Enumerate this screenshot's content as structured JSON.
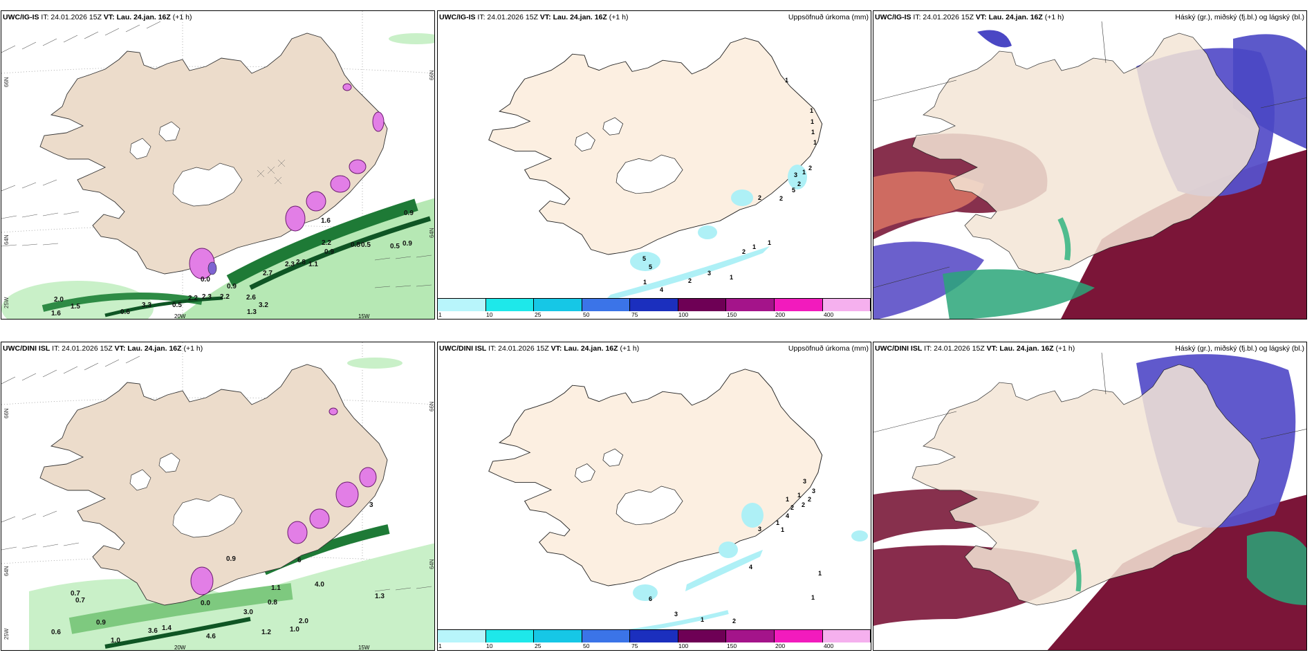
{
  "rows": [
    {
      "model": "UWC/IG-IS",
      "panels": [
        {
          "it": "IT: 24.01.2026 15Z",
          "vt": "VT: Lau. 24.jan. 16Z",
          "lead": "(+1 h)",
          "title_right": "",
          "lat_labels": [
            "66N",
            "64N",
            "25W"
          ],
          "lon_labels": [
            "20W",
            "15W"
          ],
          "right_lat": [
            "66N",
            "64N"
          ],
          "values": [
            {
              "text": "0.9"
            },
            {
              "text": "0.5"
            },
            {
              "text": "0.9"
            },
            {
              "text": "0.8"
            },
            {
              "text": "0.5"
            },
            {
              "text": "0.9"
            },
            {
              "text": "2.2"
            },
            {
              "text": "2.7"
            },
            {
              "text": "2.3"
            },
            {
              "text": "1.1"
            },
            {
              "text": "2.8"
            },
            {
              "text": "2.2"
            },
            {
              "text": "2.6"
            },
            {
              "text": "1.3"
            },
            {
              "text": "3.2"
            },
            {
              "text": "2.3"
            },
            {
              "text": "2.2"
            },
            {
              "text": "1.5"
            },
            {
              "text": "0.6"
            },
            {
              "text": "0.5"
            },
            {
              "text": "3.3"
            },
            {
              "text": "0.9"
            },
            {
              "text": "1.6"
            },
            {
              "text": "2.0"
            },
            {
              "text": "0.0"
            },
            {
              "text": "1.6"
            }
          ]
        },
        {
          "it": "IT: 24.01.2026 15Z",
          "vt": "VT: Lau. 24.jan. 16Z",
          "lead": "(+1 h)",
          "title_right": "Uppsöfnuð úrkoma (mm)",
          "point_labels": [
            "1",
            "1",
            "1",
            "1",
            "1",
            "1",
            "2",
            "3",
            "2",
            "5",
            "2",
            "2",
            "1",
            "2",
            "1",
            "1",
            "3",
            "2",
            "4",
            "1",
            "5",
            "5"
          ],
          "legend": {
            "ticks": [
              "1",
              "10",
              "25",
              "50",
              "75",
              "100",
              "150",
              "200",
              "400"
            ],
            "colors": [
              "#b8f5fb",
              "#1ee8ea",
              "#16c7e6",
              "#3b74e8",
              "#1b2fbe",
              "#6e0055",
              "#a4148a",
              "#f21bbd",
              "#f5b0ee"
            ]
          }
        },
        {
          "it": "IT: 24.01.2026 15Z",
          "vt": "VT: Lau. 24.jan. 16Z",
          "lead": "(+1 h)",
          "title_right": "Háský (gr.), miðský (fj.bl.) og lágský (bl.)"
        }
      ]
    },
    {
      "model": "UWC/DINI ISL",
      "panels": [
        {
          "it": "IT: 24.01.2026 15Z",
          "vt": "VT: Lau. 24.jan. 16Z",
          "lead": "(+1 h)",
          "title_right": "",
          "lat_labels": [
            "66N",
            "64N",
            "25W"
          ],
          "lon_labels": [
            "20W",
            "15W"
          ],
          "right_lat": [
            "66N",
            "64N"
          ],
          "values": [
            {
              "text": "0.7"
            },
            {
              "text": "0.7"
            },
            {
              "text": "0.9"
            },
            {
              "text": "0.6"
            },
            {
              "text": "1.0"
            },
            {
              "text": "3.6"
            },
            {
              "text": "1.4"
            },
            {
              "text": "4.6"
            },
            {
              "text": "1.2"
            },
            {
              "text": "1.0"
            },
            {
              "text": "3.0"
            },
            {
              "text": "0.8"
            },
            {
              "text": "1.1"
            },
            {
              "text": "2.0"
            },
            {
              "text": "4.0"
            },
            {
              "text": "1.3"
            },
            {
              "text": "0.9"
            },
            {
              "text": "0.0"
            },
            {
              "text": "3"
            },
            {
              "text": "6"
            }
          ]
        },
        {
          "it": "IT: 24.01.2026 15Z",
          "vt": "VT: Lau. 24.jan. 16Z",
          "lead": "(+1 h)",
          "title_right": "Uppsöfnuð úrkoma (mm)",
          "point_labels": [
            "3",
            "3",
            "2",
            "1",
            "2",
            "1",
            "2",
            "4",
            "1",
            "1",
            "3",
            "4",
            "1",
            "6",
            "3",
            "1",
            "2",
            "1"
          ],
          "legend": {
            "ticks": [
              "1",
              "10",
              "25",
              "50",
              "75",
              "100",
              "150",
              "200",
              "400"
            ],
            "colors": [
              "#b8f5fb",
              "#1ee8ea",
              "#16c7e6",
              "#3b74e8",
              "#1b2fbe",
              "#6e0055",
              "#a4148a",
              "#f21bbd",
              "#f5b0ee"
            ]
          }
        },
        {
          "it": "IT: 24.01.2026 15Z",
          "vt": "VT: Lau. 24.jan. 16Z",
          "lead": "(+1 h)",
          "title_right": "Háský (gr.), miðský (fj.bl.) og lágský (bl.)"
        }
      ]
    }
  ]
}
